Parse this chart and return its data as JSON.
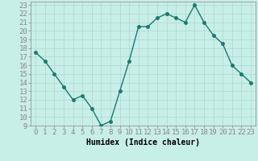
{
  "x": [
    0,
    1,
    2,
    3,
    4,
    5,
    6,
    7,
    8,
    9,
    10,
    11,
    12,
    13,
    14,
    15,
    16,
    17,
    18,
    19,
    20,
    21,
    22,
    23
  ],
  "y": [
    17.5,
    16.5,
    15.0,
    13.5,
    12.0,
    12.5,
    11.0,
    9.0,
    9.5,
    13.0,
    16.5,
    20.5,
    20.5,
    21.5,
    22.0,
    21.5,
    21.0,
    23.0,
    21.0,
    19.5,
    18.5,
    16.0,
    15.0,
    14.0
  ],
  "line_color": "#1a7a6e",
  "marker_color": "#1a7a6e",
  "bg_color": "#c8eee8",
  "grid_color": "#aed8d0",
  "axis_color": "#888888",
  "xlabel": "Humidex (Indice chaleur)",
  "xlim": [
    -0.5,
    23.5
  ],
  "ylim": [
    9,
    23.4
  ],
  "xticks": [
    0,
    1,
    2,
    3,
    4,
    5,
    6,
    7,
    8,
    9,
    10,
    11,
    12,
    13,
    14,
    15,
    16,
    17,
    18,
    19,
    20,
    21,
    22,
    23
  ],
  "yticks": [
    9,
    10,
    11,
    12,
    13,
    14,
    15,
    16,
    17,
    18,
    19,
    20,
    21,
    22,
    23
  ],
  "label_fontsize": 7,
  "tick_fontsize": 6.5
}
